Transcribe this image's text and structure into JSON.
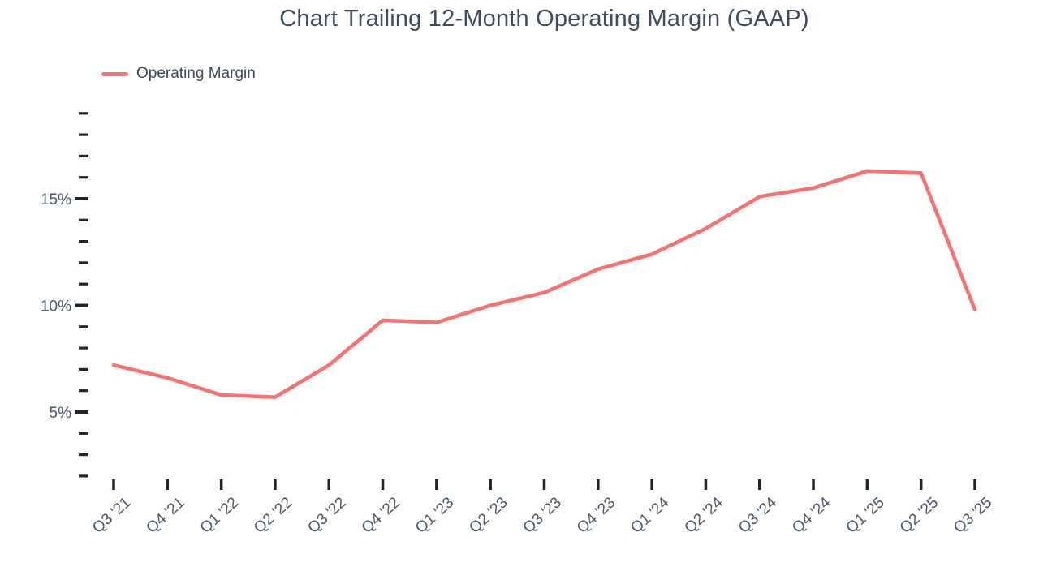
{
  "chart_data": {
    "type": "line",
    "title": "Chart Trailing 12-Month Operating Margin (GAAP)",
    "xlabel": "",
    "ylabel": "",
    "grid": "off",
    "legend_position": "top-left",
    "categories": [
      "Q3 '21",
      "Q4 '21",
      "Q1 '22",
      "Q2 '22",
      "Q3 '22",
      "Q4 '22",
      "Q1 '23",
      "Q2 '23",
      "Q3 '23",
      "Q4 '23",
      "Q1 '24",
      "Q2 '24",
      "Q3 '24",
      "Q4 '24",
      "Q1 '25",
      "Q2 '25",
      "Q3 '25"
    ],
    "series": [
      {
        "name": "Operating Margin",
        "unit": "%",
        "values": [
          7.2,
          6.6,
          5.8,
          5.7,
          7.2,
          9.3,
          9.2,
          10.0,
          10.6,
          11.7,
          12.4,
          13.6,
          15.1,
          15.5,
          16.3,
          16.2,
          9.8
        ]
      }
    ],
    "ylim": [
      2,
      19
    ],
    "ytick_minor_step": 1,
    "ytick_major": [
      {
        "value": 5,
        "label": "5%"
      },
      {
        "value": 10,
        "label": "10%"
      },
      {
        "value": 15,
        "label": "15%"
      }
    ]
  },
  "colors": {
    "line": "#F87171",
    "title_text": "#404B5F",
    "legend_text": "#3D4859",
    "axis_label_text": "#4A5568",
    "tick": "#20252C",
    "background": "#FFFFFF"
  }
}
